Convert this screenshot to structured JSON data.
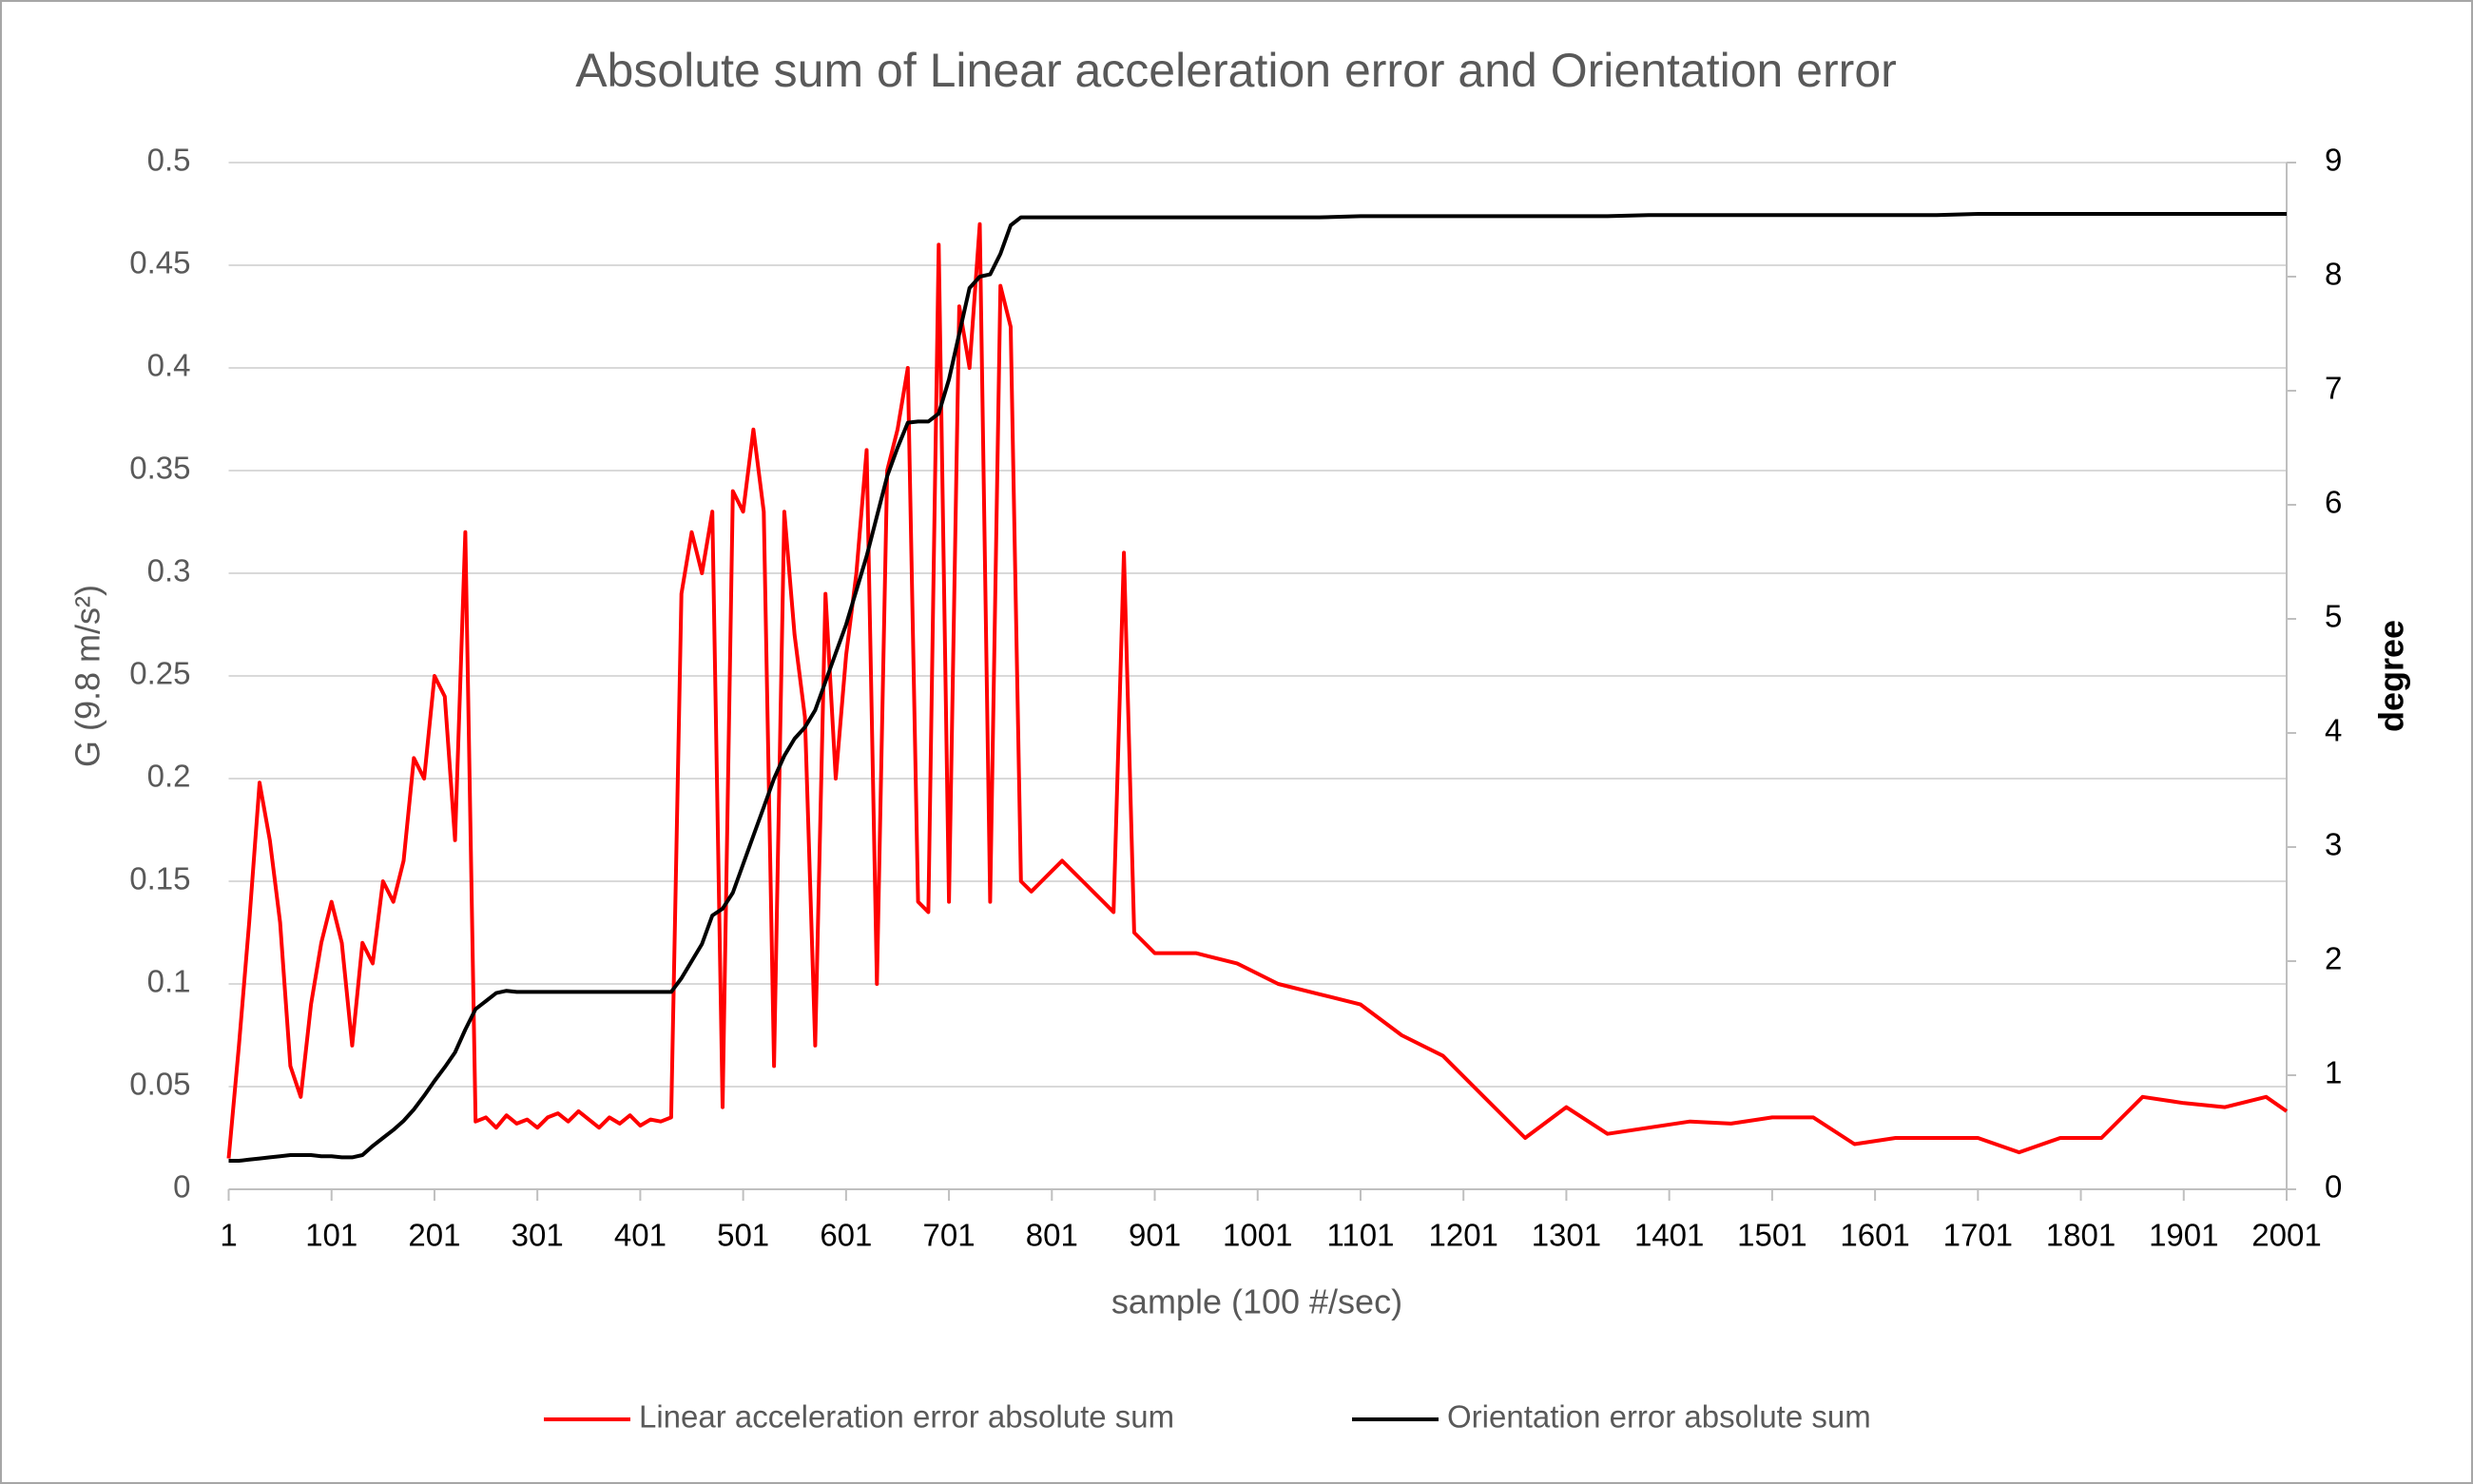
{
  "chart_data": {
    "type": "line",
    "title": "Absolute sum of Linear acceleration error and Orientation error",
    "x_label": "sample (100 #/sec)",
    "y_label": "G (9.8 m/s²)",
    "y2_label": "degree",
    "x": [
      1,
      11,
      21,
      31,
      41,
      51,
      61,
      71,
      81,
      91,
      101,
      111,
      121,
      131,
      141,
      151,
      161,
      171,
      181,
      191,
      201,
      211,
      221,
      231,
      241,
      251,
      261,
      271,
      281,
      291,
      301,
      311,
      321,
      331,
      341,
      351,
      361,
      371,
      381,
      391,
      401,
      411,
      421,
      431,
      441,
      451,
      461,
      471,
      481,
      491,
      501,
      511,
      521,
      531,
      541,
      551,
      561,
      571,
      581,
      591,
      601,
      611,
      621,
      631,
      641,
      651,
      661,
      671,
      681,
      691,
      701,
      711,
      721,
      731,
      741,
      751,
      761,
      771,
      781,
      791,
      801,
      811,
      821,
      831,
      841,
      851,
      861,
      871,
      881,
      901,
      941,
      981,
      1021,
      1061,
      1101,
      1141,
      1181,
      1221,
      1261,
      1301,
      1341,
      1381,
      1421,
      1461,
      1501,
      1541,
      1581,
      1621,
      1661,
      1701,
      1741,
      1781,
      1821,
      1861,
      1901,
      1941,
      1981,
      2001
    ],
    "series": [
      {
        "name": "Linear acceleration error absolute sum",
        "color": "#ff0000",
        "axis": "y",
        "values": [
          0.015,
          0.07,
          0.13,
          0.198,
          0.17,
          0.13,
          0.06,
          0.045,
          0.09,
          0.12,
          0.14,
          0.12,
          0.07,
          0.12,
          0.11,
          0.15,
          0.14,
          0.16,
          0.21,
          0.2,
          0.25,
          0.24,
          0.17,
          0.32,
          0.033,
          0.035,
          0.03,
          0.036,
          0.032,
          0.034,
          0.03,
          0.035,
          0.037,
          0.033,
          0.038,
          0.034,
          0.03,
          0.035,
          0.032,
          0.036,
          0.031,
          0.034,
          0.033,
          0.035,
          0.29,
          0.32,
          0.3,
          0.33,
          0.04,
          0.34,
          0.33,
          0.37,
          0.33,
          0.06,
          0.33,
          0.27,
          0.23,
          0.07,
          0.29,
          0.2,
          0.26,
          0.3,
          0.36,
          0.1,
          0.35,
          0.37,
          0.4,
          0.14,
          0.135,
          0.46,
          0.14,
          0.43,
          0.4,
          0.47,
          0.14,
          0.44,
          0.42,
          0.15,
          0.145,
          0.15,
          0.155,
          0.16,
          0.155,
          0.15,
          0.145,
          0.14,
          0.135,
          0.31,
          0.125,
          0.115,
          0.115,
          0.11,
          0.1,
          0.095,
          0.09,
          0.075,
          0.065,
          0.045,
          0.025,
          0.04,
          0.027,
          0.03,
          0.033,
          0.032,
          0.035,
          0.035,
          0.022,
          0.025,
          0.025,
          0.025,
          0.018,
          0.025,
          0.025,
          0.045,
          0.042,
          0.04,
          0.045,
          0.038
        ]
      },
      {
        "name": "Orientation error absolute sum",
        "color": "#000000",
        "axis": "y2",
        "values": [
          0.25,
          0.25,
          0.26,
          0.27,
          0.28,
          0.29,
          0.3,
          0.3,
          0.3,
          0.29,
          0.29,
          0.28,
          0.28,
          0.3,
          0.38,
          0.45,
          0.52,
          0.6,
          0.7,
          0.82,
          0.95,
          1.07,
          1.2,
          1.4,
          1.58,
          1.65,
          1.72,
          1.74,
          1.73,
          1.73,
          1.73,
          1.73,
          1.73,
          1.73,
          1.73,
          1.73,
          1.73,
          1.73,
          1.73,
          1.73,
          1.73,
          1.73,
          1.73,
          1.73,
          1.85,
          2.0,
          2.15,
          2.4,
          2.46,
          2.6,
          2.85,
          3.1,
          3.35,
          3.6,
          3.8,
          3.95,
          4.05,
          4.2,
          4.45,
          4.7,
          4.95,
          5.25,
          5.55,
          5.9,
          6.25,
          6.5,
          6.72,
          6.73,
          6.73,
          6.8,
          7.1,
          7.5,
          7.9,
          8.0,
          8.02,
          8.2,
          8.45,
          8.52,
          8.52,
          8.52,
          8.52,
          8.52,
          8.52,
          8.52,
          8.52,
          8.52,
          8.52,
          8.52,
          8.52,
          8.52,
          8.52,
          8.52,
          8.52,
          8.52,
          8.53,
          8.53,
          8.53,
          8.53,
          8.53,
          8.53,
          8.53,
          8.54,
          8.54,
          8.54,
          8.54,
          8.54,
          8.54,
          8.54,
          8.54,
          8.55,
          8.55,
          8.55,
          8.55,
          8.55,
          8.55,
          8.55,
          8.55,
          8.55
        ]
      }
    ],
    "xlim": [
      1,
      2001
    ],
    "xticks": [
      1,
      101,
      201,
      301,
      401,
      501,
      601,
      701,
      801,
      901,
      1001,
      1101,
      1201,
      1301,
      1401,
      1501,
      1601,
      1701,
      1801,
      1901,
      2001
    ],
    "ylim": [
      0,
      0.5
    ],
    "yticks": [
      0,
      0.05,
      0.1,
      0.15,
      0.2,
      0.25,
      0.3,
      0.35,
      0.4,
      0.45,
      0.5
    ],
    "y2lim": [
      0,
      9
    ],
    "y2ticks": [
      0,
      1,
      2,
      3,
      4,
      5,
      6,
      7,
      8,
      9
    ],
    "grid": true,
    "legend": "bottom"
  }
}
